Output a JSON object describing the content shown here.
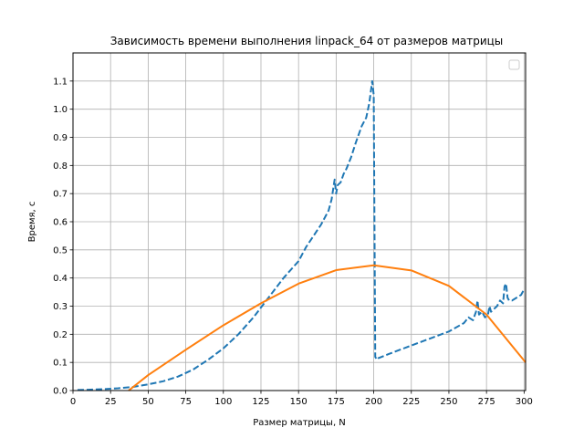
{
  "chart_data": {
    "type": "line",
    "title": "Зависимость времени выполнения linpack_64 от размеров матрицы",
    "xlabel": "Размер матрицы, N",
    "ylabel": "Время, с",
    "xlim": [
      0,
      301
    ],
    "ylim": [
      0,
      1.2
    ],
    "xticks": [
      0,
      25,
      50,
      75,
      100,
      125,
      150,
      175,
      200,
      225,
      250,
      275,
      300
    ],
    "yticks": [
      0.0,
      0.1,
      0.2,
      0.3,
      0.4,
      0.5,
      0.6,
      0.7,
      0.8,
      0.9,
      1.0,
      1.1
    ],
    "grid": true,
    "legend": "top-right (empty)",
    "series": [
      {
        "style": "dashed",
        "color": "#1f77b4",
        "x": [
          3,
          10,
          20,
          30,
          40,
          50,
          60,
          70,
          80,
          90,
          100,
          110,
          120,
          130,
          140,
          150,
          155,
          160,
          165,
          170,
          172,
          174,
          175,
          176,
          178,
          180,
          182,
          185,
          188,
          190,
          192,
          195,
          197,
          198,
          199,
          200,
          201,
          202,
          203,
          210,
          220,
          230,
          240,
          250,
          260,
          263,
          266,
          268,
          269,
          270,
          272,
          274,
          276,
          277,
          278,
          280,
          282,
          284,
          286,
          287,
          288,
          289,
          290,
          292,
          295,
          298,
          300
        ],
        "y": [
          0.002,
          0.003,
          0.005,
          0.008,
          0.013,
          0.022,
          0.033,
          0.05,
          0.075,
          0.11,
          0.15,
          0.2,
          0.26,
          0.33,
          0.4,
          0.46,
          0.51,
          0.55,
          0.59,
          0.64,
          0.68,
          0.75,
          0.7,
          0.73,
          0.74,
          0.77,
          0.79,
          0.83,
          0.88,
          0.91,
          0.94,
          0.97,
          1.02,
          1.06,
          1.1,
          1.05,
          0.12,
          0.11,
          0.115,
          0.13,
          0.15,
          0.17,
          0.19,
          0.21,
          0.24,
          0.26,
          0.25,
          0.28,
          0.32,
          0.27,
          0.28,
          0.26,
          0.27,
          0.3,
          0.28,
          0.29,
          0.3,
          0.32,
          0.31,
          0.37,
          0.38,
          0.33,
          0.32,
          0.32,
          0.33,
          0.34,
          0.36
        ]
      },
      {
        "style": "solid",
        "color": "#ff7f0e",
        "x": [
          37,
          50,
          75,
          100,
          125,
          150,
          175,
          200,
          225,
          250,
          275,
          301
        ],
        "y": [
          0.0,
          0.055,
          0.145,
          0.232,
          0.31,
          0.38,
          0.428,
          0.445,
          0.427,
          0.372,
          0.27,
          0.1
        ]
      }
    ]
  }
}
